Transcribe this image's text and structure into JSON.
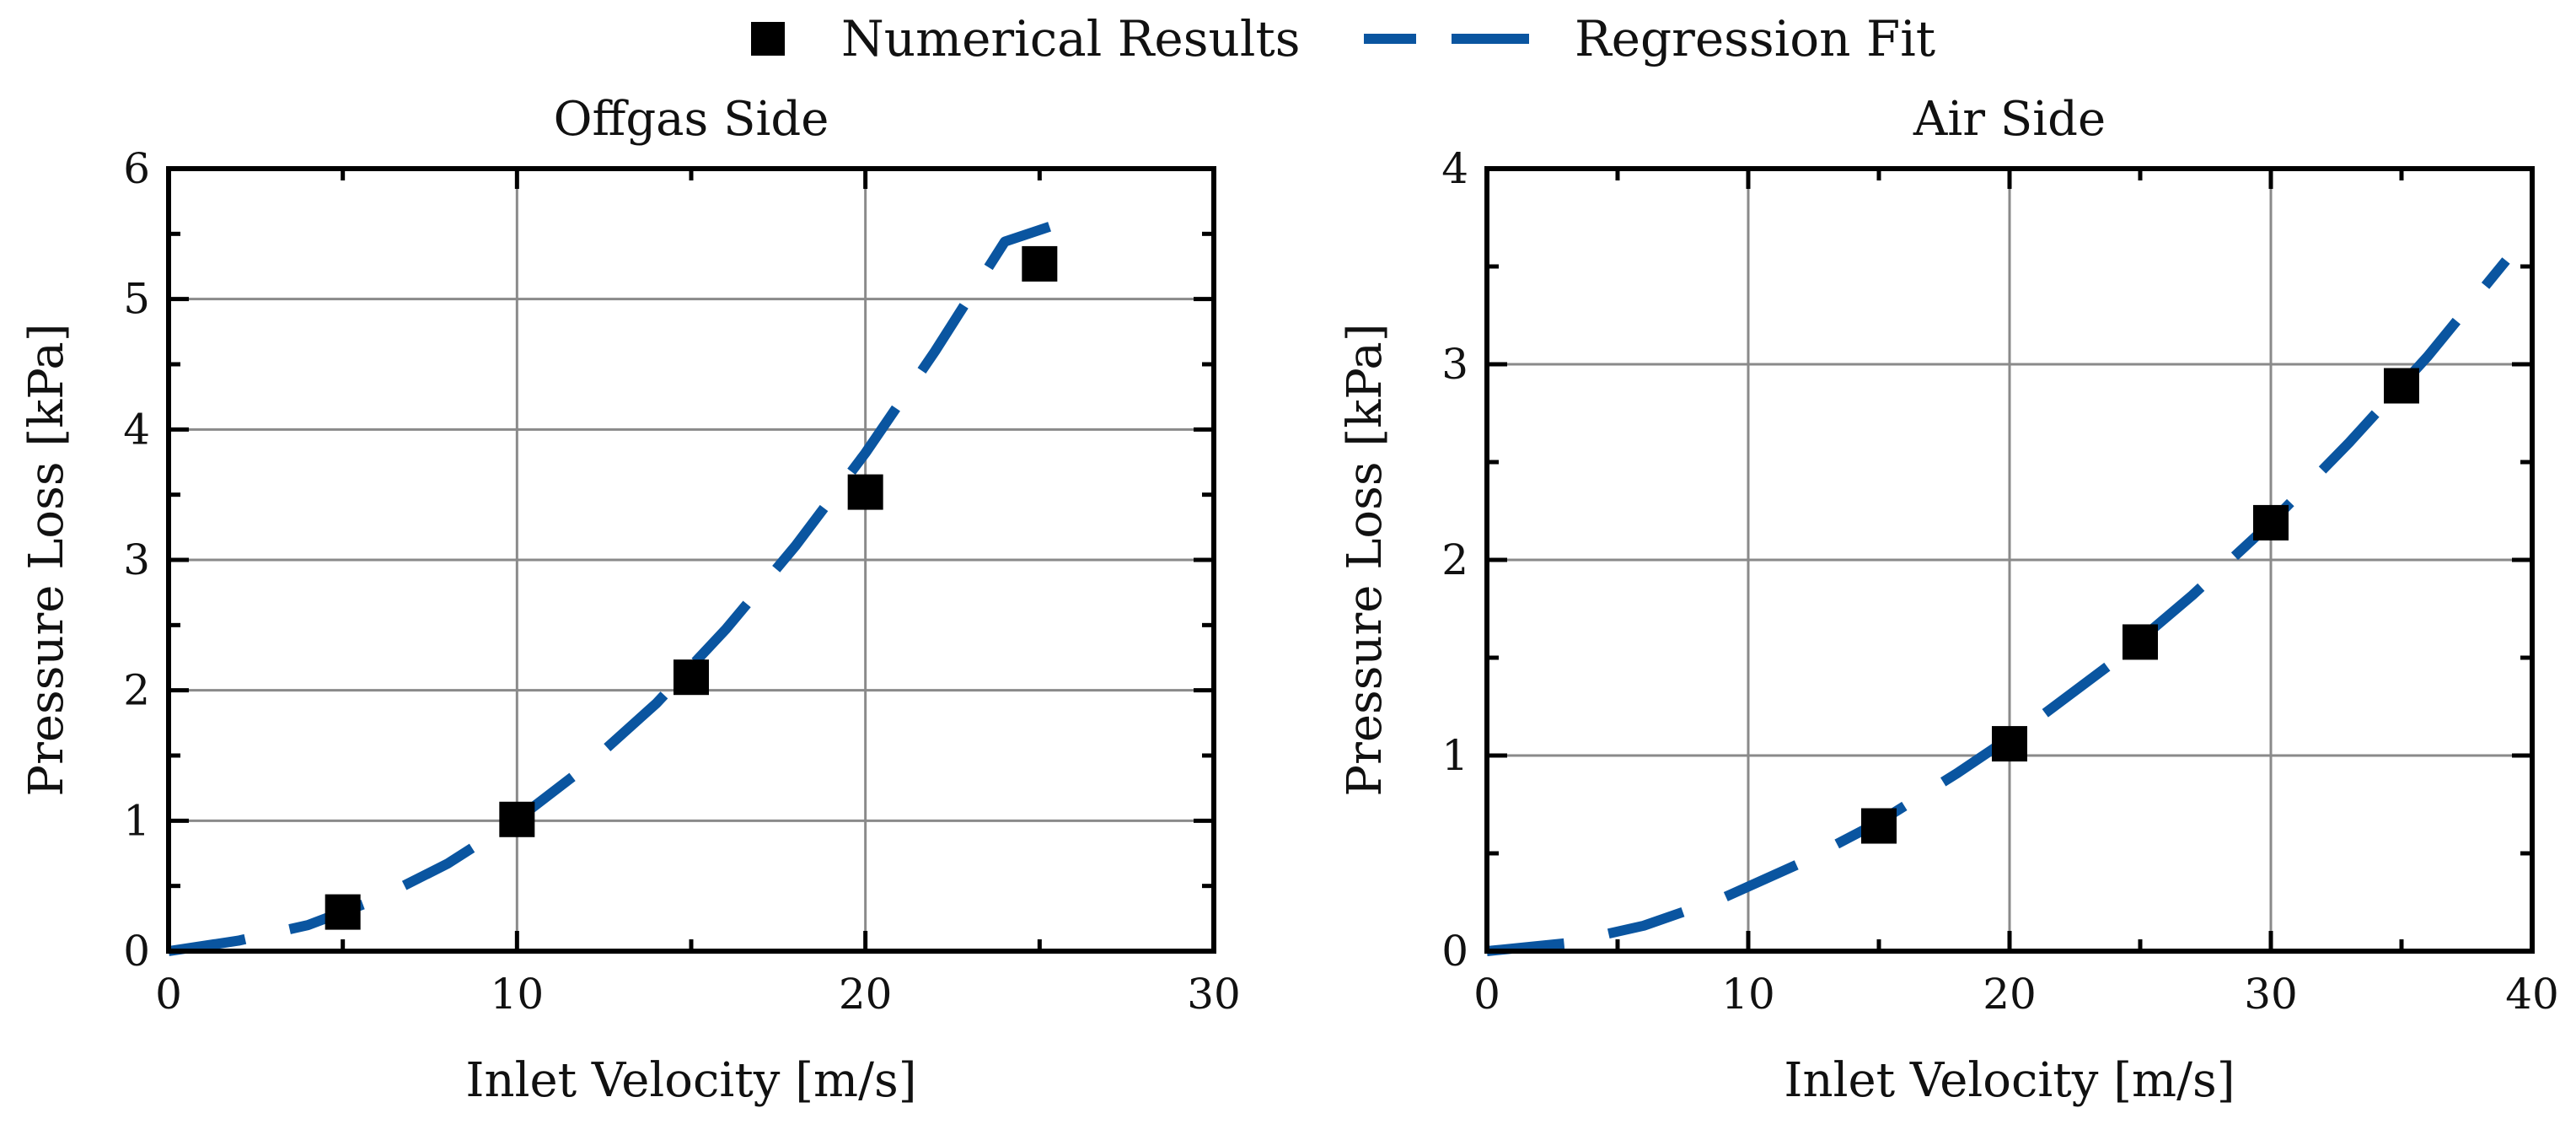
{
  "colors": {
    "fit": "#0a55a0",
    "marker": "#000000",
    "grid": "#8a8a8a"
  },
  "legend": {
    "marker_label": "Numerical Results",
    "fit_label": "Regression Fit",
    "position": "top-center"
  },
  "chart_data": [
    {
      "type": "scatter",
      "title": "Offgas Side",
      "xlabel": "Inlet Velocity [m/s]",
      "ylabel": "Pressure Loss [kPa]",
      "xlim": [
        0,
        30
      ],
      "ylim": [
        0,
        6
      ],
      "xticks": [
        0,
        10,
        20,
        30
      ],
      "yticks": [
        0,
        1,
        2,
        3,
        4,
        5,
        6
      ],
      "grid": true,
      "series": [
        {
          "name": "Numerical Results",
          "kind": "markers",
          "x": [
            5,
            10,
            15,
            20,
            25
          ],
          "y": [
            0.3,
            1.01,
            2.1,
            3.52,
            5.27
          ]
        },
        {
          "name": "Regression Fit",
          "kind": "dashed-line",
          "x": [
            0,
            2,
            4,
            6,
            8,
            10,
            12,
            14,
            16,
            18,
            20,
            22,
            24,
            26
          ],
          "y": [
            0,
            0.08,
            0.2,
            0.4,
            0.67,
            1.01,
            1.42,
            1.9,
            2.47,
            3.11,
            3.82,
            4.6,
            5.44,
            5.62
          ]
        }
      ]
    },
    {
      "type": "scatter",
      "title": "Air Side",
      "xlabel": "Inlet Velocity [m/s]",
      "ylabel": "Pressure Loss [kPa]",
      "xlim": [
        0,
        40
      ],
      "ylim": [
        0,
        4
      ],
      "xticks": [
        0,
        10,
        20,
        30,
        40
      ],
      "yticks": [
        0,
        1,
        2,
        3,
        4
      ],
      "grid": true,
      "series": [
        {
          "name": "Numerical Results",
          "kind": "markers",
          "x": [
            15,
            20,
            25,
            30,
            35
          ],
          "y": [
            0.64,
            1.06,
            1.58,
            2.19,
            2.89
          ]
        },
        {
          "name": "Regression Fit",
          "kind": "dashed-line",
          "x": [
            0,
            3,
            6,
            9,
            12,
            15,
            18,
            21,
            24,
            27,
            30,
            33,
            36,
            39
          ],
          "y": [
            0,
            0.04,
            0.13,
            0.27,
            0.45,
            0.66,
            0.91,
            1.18,
            1.48,
            1.82,
            2.19,
            2.6,
            3.04,
            3.53
          ]
        }
      ]
    }
  ]
}
